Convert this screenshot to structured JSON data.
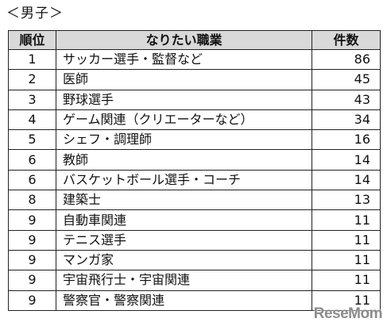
{
  "heading": "＜男子＞",
  "table": {
    "headers": {
      "rank": "順位",
      "job": "なりたい職業",
      "count": "件数"
    },
    "rows": [
      {
        "rank": "1",
        "job": "サッカー選手・監督など",
        "count": "86"
      },
      {
        "rank": "2",
        "job": "医師",
        "count": "45"
      },
      {
        "rank": "3",
        "job": "野球選手",
        "count": "43"
      },
      {
        "rank": "4",
        "job": "ゲーム関連（クリエーターなど）",
        "count": "34"
      },
      {
        "rank": "5",
        "job": "シェフ・調理師",
        "count": "16"
      },
      {
        "rank": "6",
        "job": "教師",
        "count": "14"
      },
      {
        "rank": "6",
        "job": "バスケットボール選手・コーチ",
        "count": "14"
      },
      {
        "rank": "8",
        "job": "建築士",
        "count": "13"
      },
      {
        "rank": "9",
        "job": "自動車関連",
        "count": "11"
      },
      {
        "rank": "9",
        "job": "テニス選手",
        "count": "11"
      },
      {
        "rank": "9",
        "job": "マンガ家",
        "count": "11"
      },
      {
        "rank": "9",
        "job": "宇宙飛行士・宇宙関連",
        "count": "11"
      },
      {
        "rank": "9",
        "job": "警察官・警察関連",
        "count": "11"
      }
    ]
  },
  "watermark": "ReseMom"
}
